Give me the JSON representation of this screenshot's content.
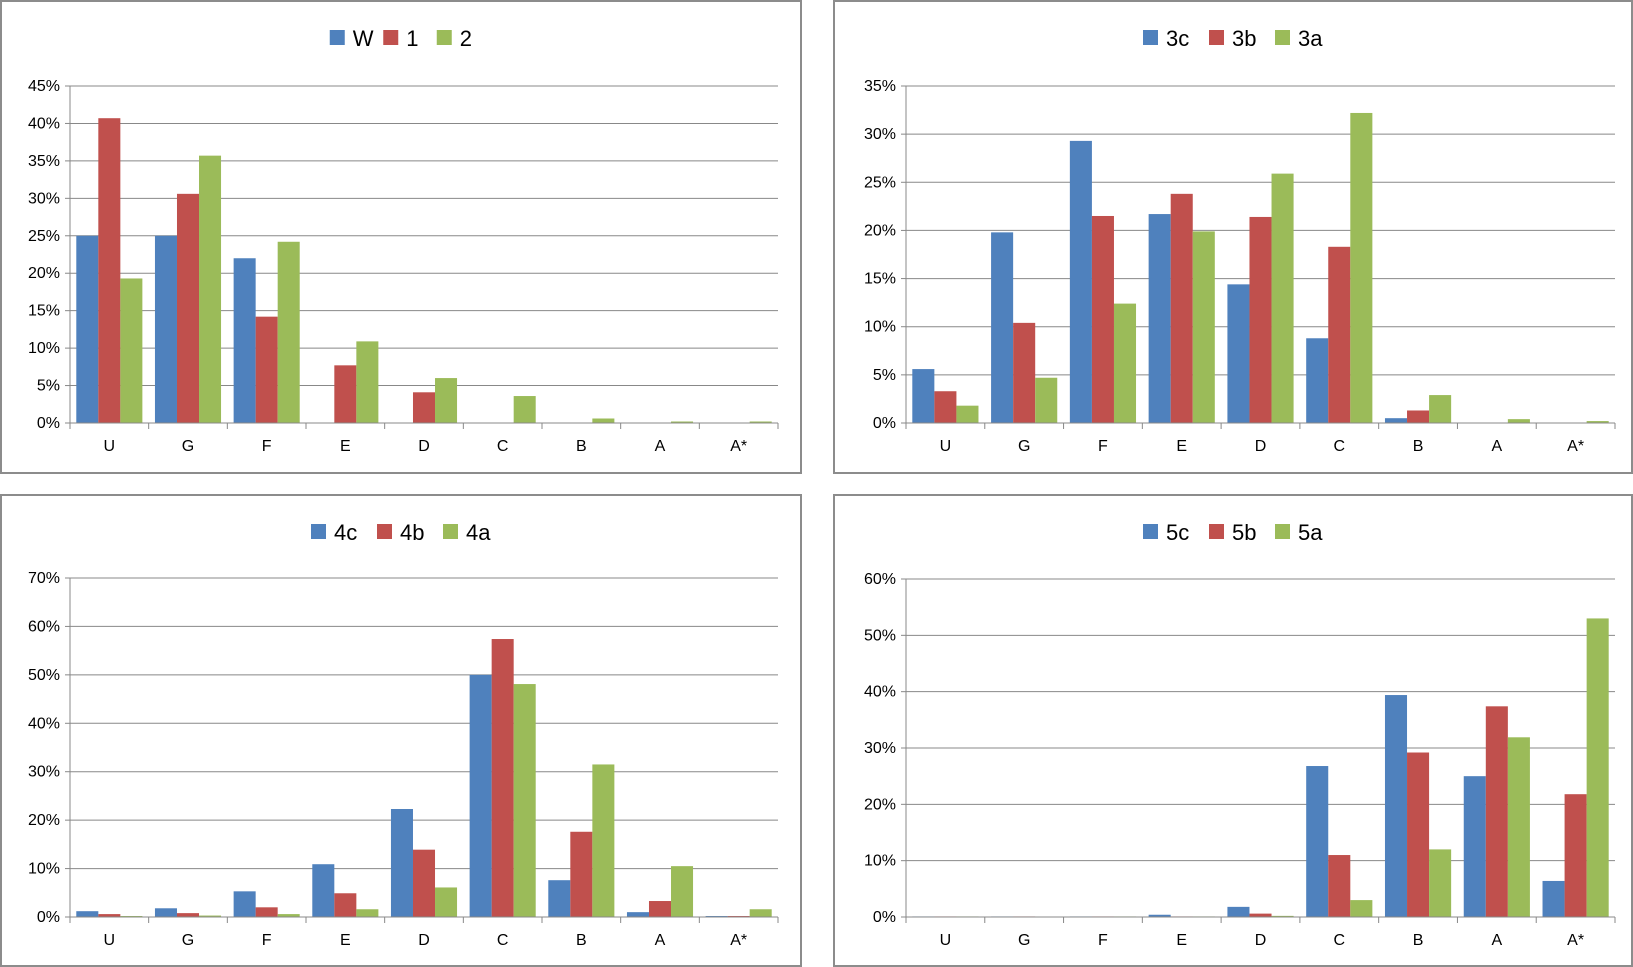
{
  "colors": {
    "s1": "#4F81BD",
    "s2": "#C0504D",
    "s3": "#9BBB59",
    "grid": "#888888",
    "axis": "#888888"
  },
  "chart_data": [
    {
      "type": "bar",
      "categories": [
        "U",
        "G",
        "F",
        "E",
        "D",
        "C",
        "B",
        "A",
        "A*"
      ],
      "ylim": [
        0,
        45
      ],
      "yticks": [
        0,
        5,
        10,
        15,
        20,
        25,
        30,
        35,
        40,
        45
      ],
      "ytick_suffix": "%",
      "legend_position": "top",
      "grid": true,
      "series": [
        {
          "name": "W",
          "values": [
            25,
            25,
            22,
            0,
            0,
            0,
            0,
            0,
            0
          ]
        },
        {
          "name": "1",
          "values": [
            40.7,
            30.6,
            14.2,
            7.7,
            4.1,
            0,
            0,
            0,
            0
          ]
        },
        {
          "name": "2",
          "values": [
            19.3,
            35.7,
            24.2,
            10.9,
            6.0,
            3.6,
            0.6,
            0.2,
            0.2
          ]
        }
      ]
    },
    {
      "type": "bar",
      "categories": [
        "U",
        "G",
        "F",
        "E",
        "D",
        "C",
        "B",
        "A",
        "A*"
      ],
      "ylim": [
        0,
        35
      ],
      "yticks": [
        0,
        5,
        10,
        15,
        20,
        25,
        30,
        35
      ],
      "ytick_suffix": "%",
      "legend_position": "top",
      "grid": true,
      "series": [
        {
          "name": "3c",
          "values": [
            5.6,
            19.8,
            29.3,
            21.7,
            14.4,
            8.8,
            0.5,
            0,
            0
          ]
        },
        {
          "name": "3b",
          "values": [
            3.3,
            10.4,
            21.5,
            23.8,
            21.4,
            18.3,
            1.3,
            0,
            0
          ]
        },
        {
          "name": "3a",
          "values": [
            1.8,
            4.7,
            12.4,
            19.9,
            25.9,
            32.2,
            2.9,
            0.4,
            0.2
          ]
        }
      ]
    },
    {
      "type": "bar",
      "categories": [
        "U",
        "G",
        "F",
        "E",
        "D",
        "C",
        "B",
        "A",
        "A*"
      ],
      "ylim": [
        0,
        70
      ],
      "yticks": [
        0,
        10,
        20,
        30,
        40,
        50,
        60,
        70
      ],
      "ytick_suffix": "%",
      "legend_position": "top",
      "grid": true,
      "series": [
        {
          "name": "4c",
          "values": [
            1.2,
            1.8,
            5.3,
            10.9,
            22.3,
            50.0,
            7.6,
            1.0,
            0.2
          ]
        },
        {
          "name": "4b",
          "values": [
            0.6,
            0.8,
            2.0,
            4.9,
            13.9,
            57.4,
            17.6,
            3.3,
            0.2
          ]
        },
        {
          "name": "4a",
          "values": [
            0.2,
            0.3,
            0.6,
            1.6,
            6.1,
            48.1,
            31.5,
            10.5,
            1.6
          ]
        }
      ]
    },
    {
      "type": "bar",
      "categories": [
        "U",
        "G",
        "F",
        "E",
        "D",
        "C",
        "B",
        "A",
        "A*"
      ],
      "ylim": [
        0,
        60
      ],
      "yticks": [
        0,
        10,
        20,
        30,
        40,
        50,
        60
      ],
      "ytick_suffix": "%",
      "legend_position": "top",
      "grid": true,
      "series": [
        {
          "name": "5c",
          "values": [
            0.1,
            0.1,
            0.1,
            0.4,
            1.8,
            26.8,
            39.4,
            25.0,
            6.4
          ]
        },
        {
          "name": "5b",
          "values": [
            0.1,
            0.1,
            0.1,
            0.1,
            0.6,
            11.0,
            29.2,
            37.4,
            21.8
          ]
        },
        {
          "name": "5a",
          "values": [
            0.1,
            0,
            0.1,
            0.1,
            0.2,
            3.0,
            12.0,
            31.9,
            53.0
          ]
        }
      ]
    }
  ]
}
